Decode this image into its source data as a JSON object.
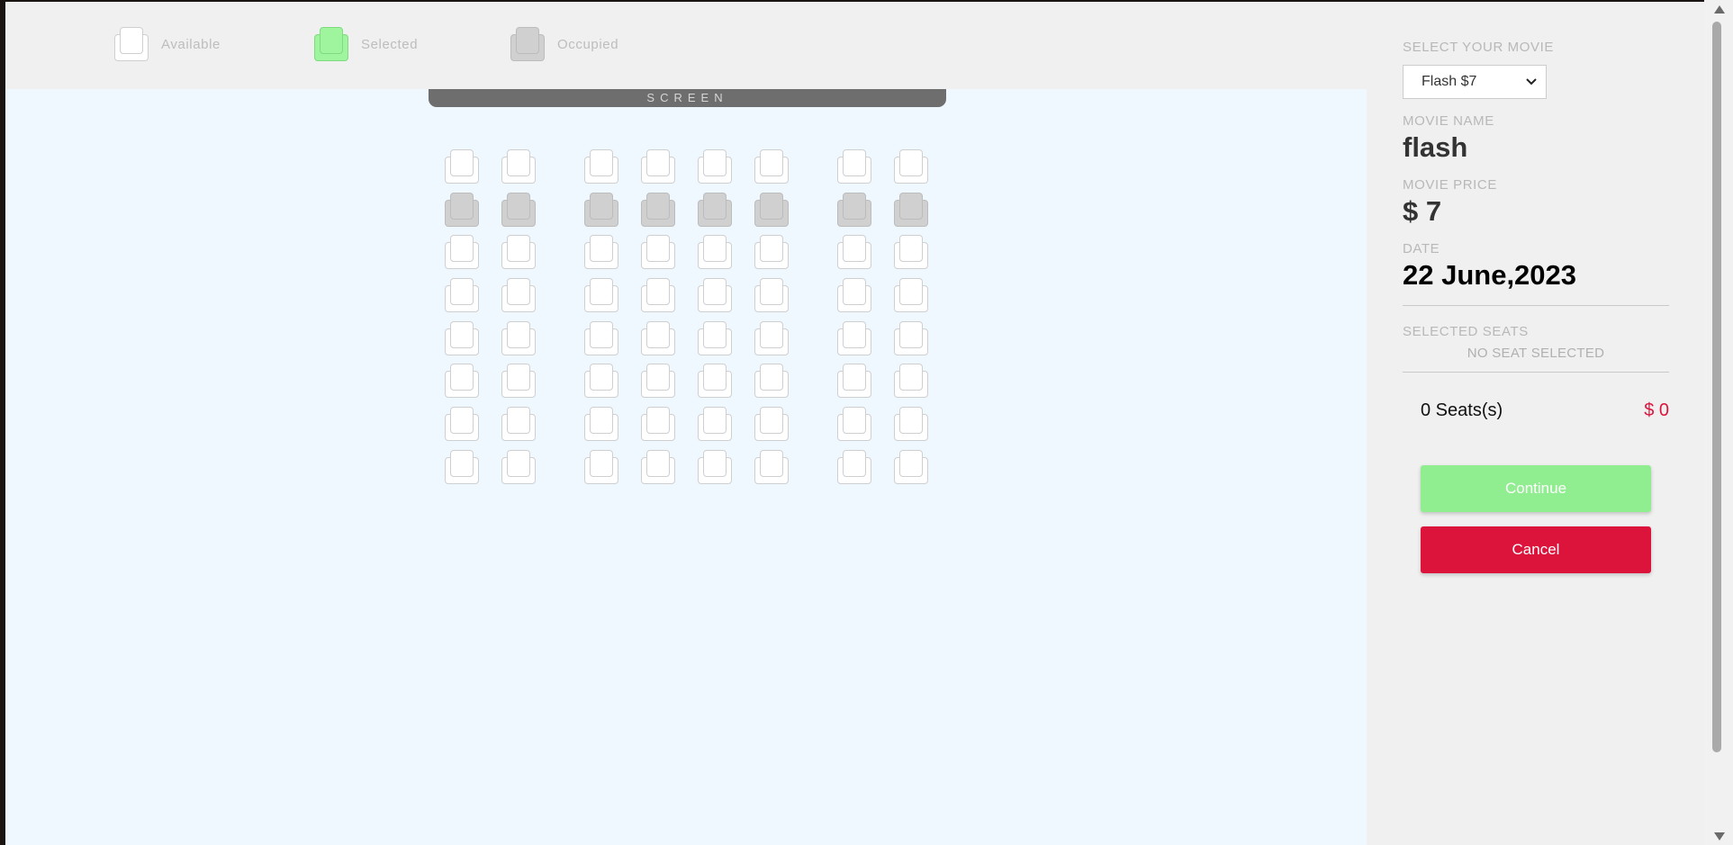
{
  "legend": {
    "available_label": "Available",
    "selected_label": "Selected",
    "occupied_label": "Occupied"
  },
  "screen_label": "SCREEN",
  "seat_map": {
    "rows": 8,
    "seats_per_row": 8,
    "occupied_row_index": 1,
    "selected_count": 0
  },
  "sidebar": {
    "select_label": "SELECT YOUR MOVIE",
    "selected_option": "Flash $7",
    "movie_name_label": "MOVIE NAME",
    "movie_name": "flash",
    "movie_price_label": "MOVIE PRICE",
    "movie_price": "$ 7",
    "date_label": "DATE",
    "date": "22 June,2023",
    "selected_seats_label": "SELECTED SEATS",
    "no_seat_text": "NO SEAT SELECTED",
    "seat_count": "0 Seats(s)",
    "total": "$ 0",
    "continue_label": "Continue",
    "cancel_label": "Cancel"
  },
  "colors": {
    "selected": "#90ee90",
    "cancel": "#dc143c",
    "occupied": "#d0d0d0",
    "available": "#ffffff"
  }
}
